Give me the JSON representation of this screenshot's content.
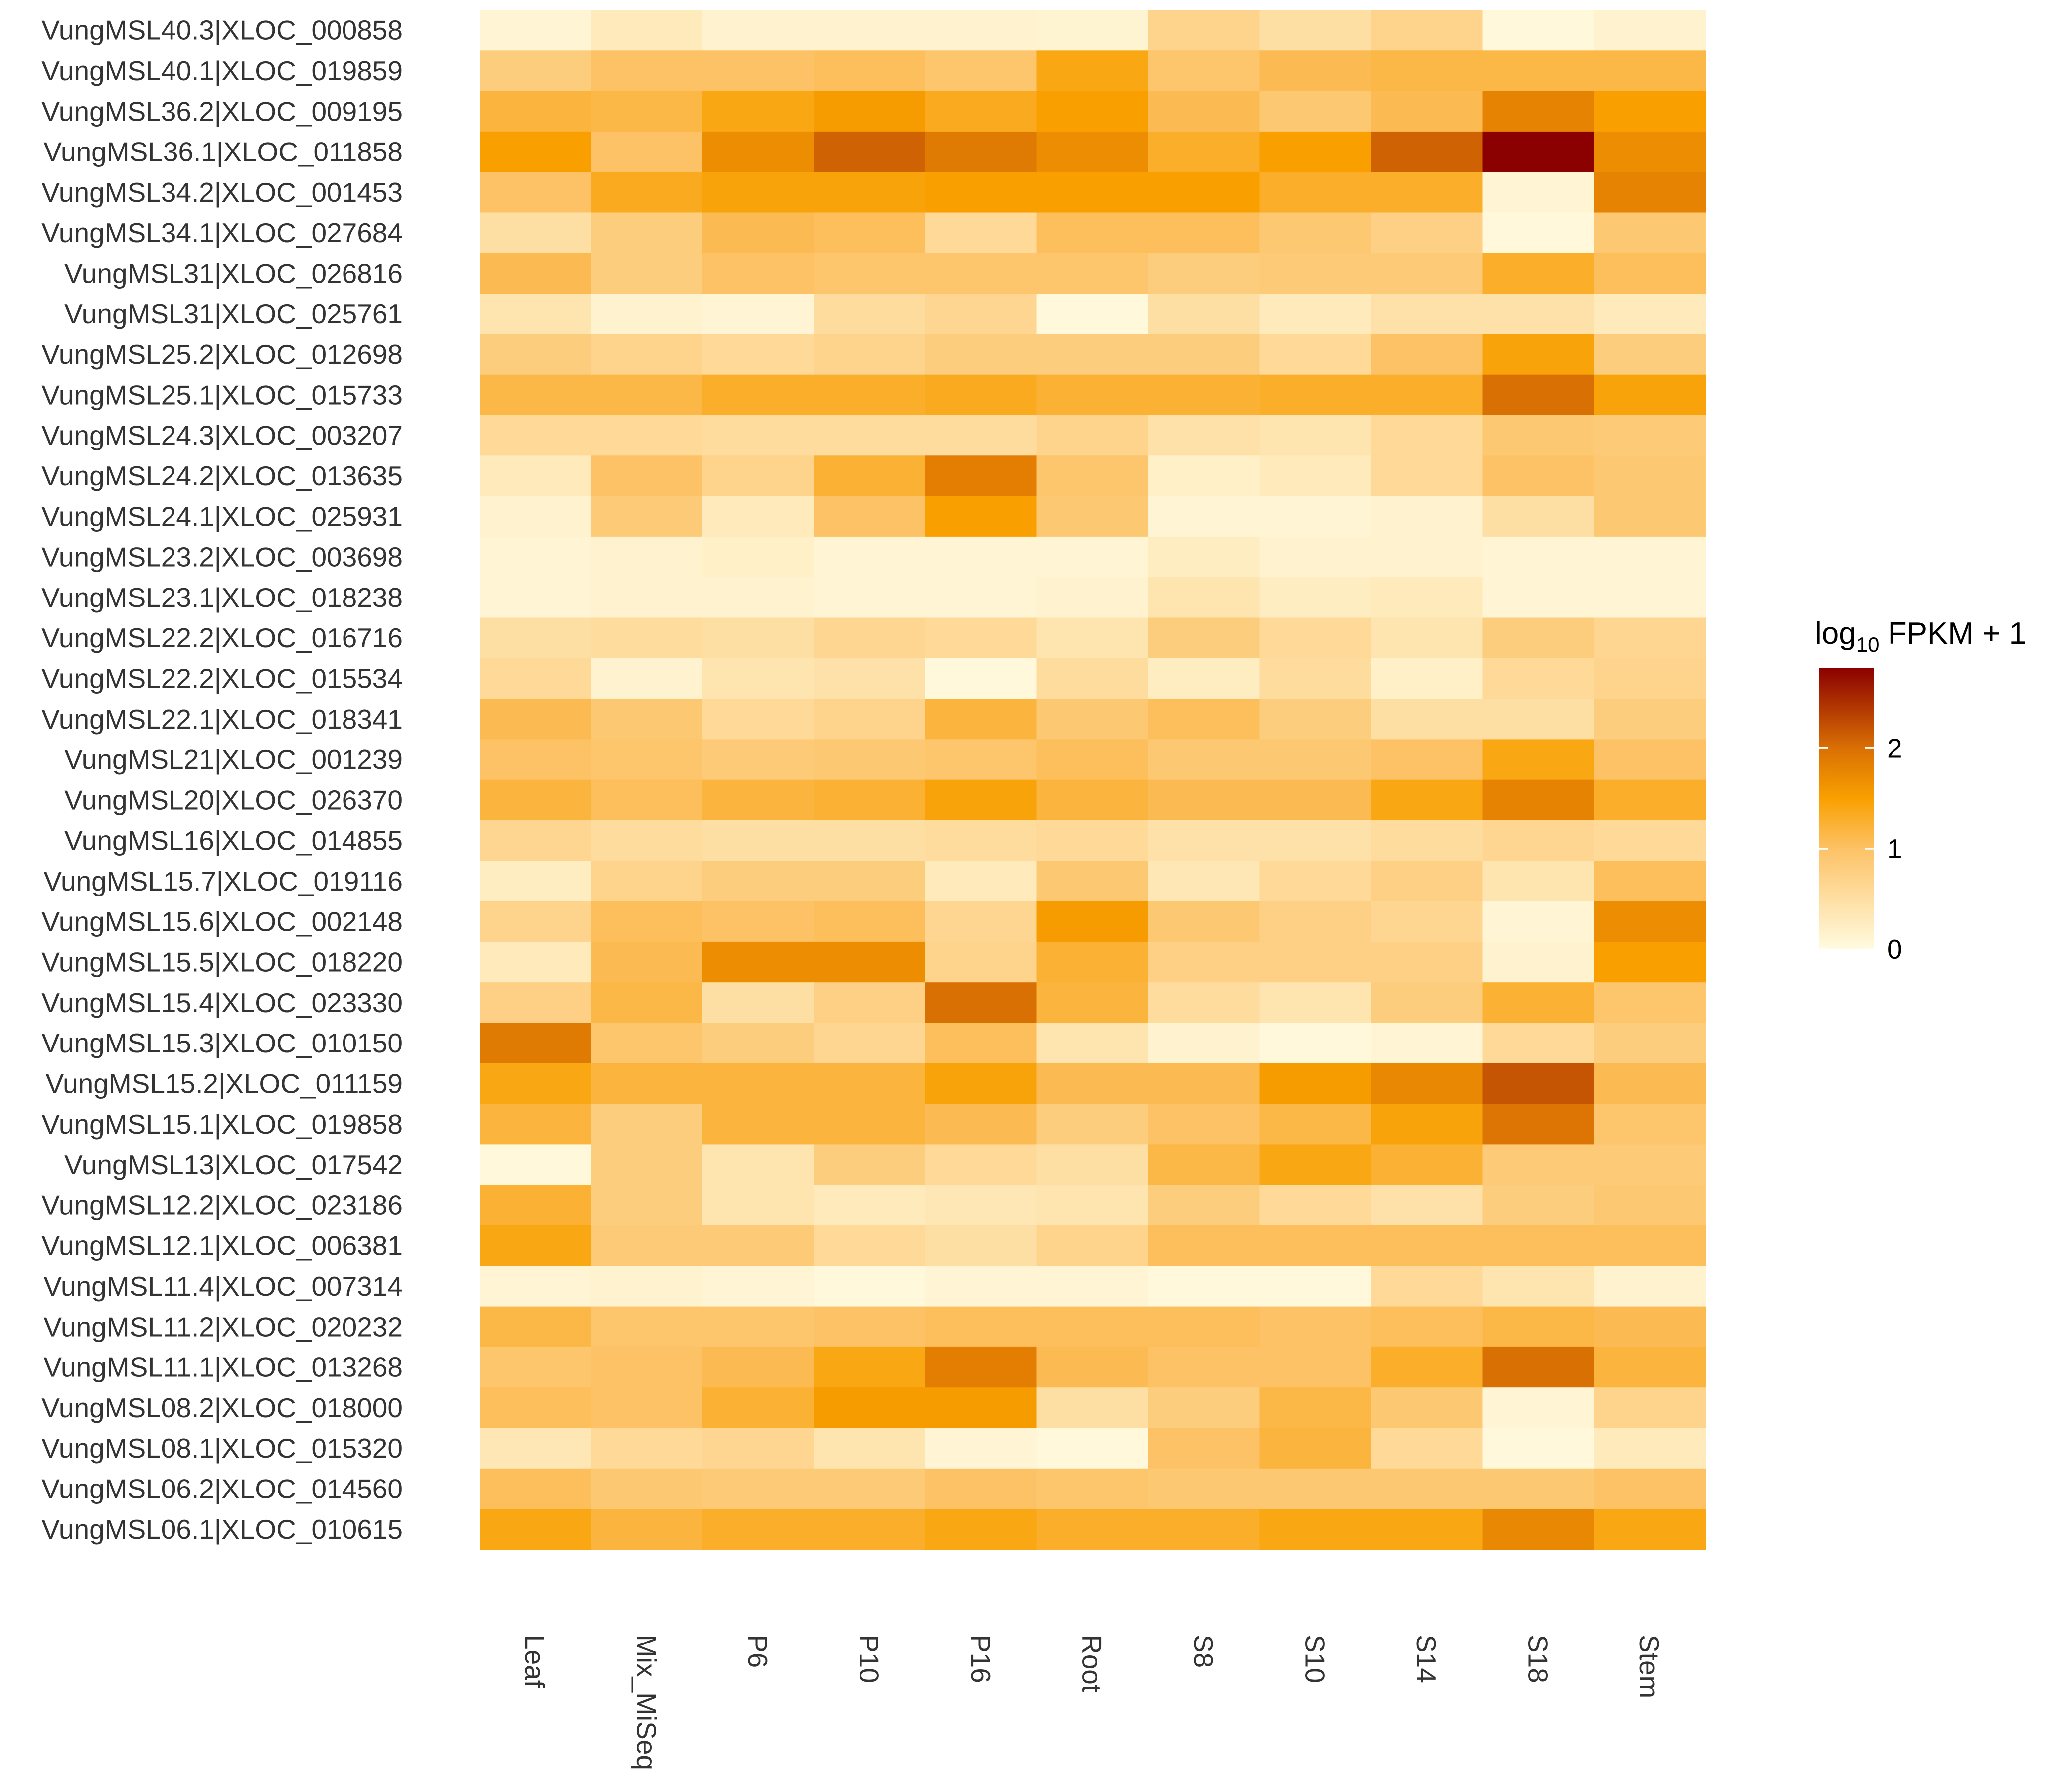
{
  "chart_data": {
    "type": "heatmap",
    "title": "",
    "xlabel": "",
    "ylabel": "",
    "columns": [
      "Leaf",
      "Mix_MiSeq",
      "P6",
      "P10",
      "P16",
      "Root",
      "S8",
      "S10",
      "S14",
      "S18",
      "Stem"
    ],
    "rows": [
      "VungMSL40.3|XLOC_000858",
      "VungMSL40.1|XLOC_019859",
      "VungMSL36.2|XLOC_009195",
      "VungMSL36.1|XLOC_011858",
      "VungMSL34.2|XLOC_001453",
      "VungMSL34.1|XLOC_027684",
      "VungMSL31|XLOC_026816",
      "VungMSL31|XLOC_025761",
      "VungMSL25.2|XLOC_012698",
      "VungMSL25.1|XLOC_015733",
      "VungMSL24.3|XLOC_003207",
      "VungMSL24.2|XLOC_013635",
      "VungMSL24.1|XLOC_025931",
      "VungMSL23.2|XLOC_003698",
      "VungMSL23.1|XLOC_018238",
      "VungMSL22.2|XLOC_016716",
      "VungMSL22.2|XLOC_015534",
      "VungMSL22.1|XLOC_018341",
      "VungMSL21|XLOC_001239",
      "VungMSL20|XLOC_026370",
      "VungMSL16|XLOC_014855",
      "VungMSL15.7|XLOC_019116",
      "VungMSL15.6|XLOC_002148",
      "VungMSL15.5|XLOC_018220",
      "VungMSL15.4|XLOC_023330",
      "VungMSL15.3|XLOC_010150",
      "VungMSL15.2|XLOC_011159",
      "VungMSL15.1|XLOC_019858",
      "VungMSL13|XLOC_017542",
      "VungMSL12.2|XLOC_023186",
      "VungMSL12.1|XLOC_006381",
      "VungMSL11.4|XLOC_007314",
      "VungMSL11.2|XLOC_020232",
      "VungMSL11.1|XLOC_013268",
      "VungMSL08.2|XLOC_018000",
      "VungMSL08.1|XLOC_015320",
      "VungMSL06.2|XLOC_014560",
      "VungMSL06.1|XLOC_010615"
    ],
    "values": [
      [
        0.1,
        0.3,
        0.15,
        0.15,
        0.15,
        0.12,
        0.7,
        0.5,
        0.7,
        0.05,
        0.15
      ],
      [
        0.8,
        1.0,
        1.0,
        1.05,
        0.95,
        1.4,
        0.95,
        1.1,
        1.15,
        1.15,
        1.15
      ],
      [
        1.2,
        1.15,
        1.4,
        1.55,
        1.35,
        1.5,
        1.1,
        0.9,
        1.1,
        1.8,
        1.5
      ],
      [
        1.5,
        1.0,
        1.7,
        2.1,
        1.9,
        1.7,
        1.3,
        1.5,
        2.1,
        2.8,
        1.7
      ],
      [
        1.0,
        1.35,
        1.45,
        1.45,
        1.5,
        1.5,
        1.5,
        1.3,
        1.3,
        0.1,
        1.8
      ],
      [
        0.5,
        0.8,
        1.1,
        1.05,
        0.6,
        1.05,
        1.05,
        0.9,
        0.75,
        0.05,
        0.9
      ],
      [
        1.1,
        0.8,
        1.0,
        0.95,
        0.95,
        0.95,
        0.8,
        0.85,
        0.85,
        1.3,
        1.05
      ],
      [
        0.4,
        0.15,
        0.1,
        0.55,
        0.65,
        0.05,
        0.5,
        0.3,
        0.45,
        0.45,
        0.3
      ],
      [
        0.8,
        0.7,
        0.6,
        0.7,
        0.8,
        0.8,
        0.8,
        0.6,
        1.0,
        1.45,
        0.8
      ],
      [
        1.15,
        1.15,
        1.3,
        1.3,
        1.35,
        1.25,
        1.25,
        1.3,
        1.3,
        2.0,
        1.45
      ],
      [
        0.6,
        0.6,
        0.55,
        0.55,
        0.55,
        0.7,
        0.45,
        0.4,
        0.6,
        0.9,
        0.85
      ],
      [
        0.3,
        1.0,
        0.7,
        1.25,
        1.85,
        0.95,
        0.2,
        0.3,
        0.6,
        1.0,
        0.9
      ],
      [
        0.15,
        0.85,
        0.3,
        1.0,
        1.5,
        0.9,
        0.1,
        0.1,
        0.15,
        0.5,
        0.9
      ],
      [
        0.1,
        0.15,
        0.2,
        0.1,
        0.1,
        0.1,
        0.25,
        0.15,
        0.15,
        0.1,
        0.1
      ],
      [
        0.1,
        0.15,
        0.15,
        0.1,
        0.1,
        0.15,
        0.4,
        0.25,
        0.3,
        0.1,
        0.1
      ],
      [
        0.5,
        0.55,
        0.5,
        0.65,
        0.6,
        0.4,
        0.8,
        0.6,
        0.4,
        0.8,
        0.65
      ],
      [
        0.6,
        0.15,
        0.4,
        0.45,
        0.05,
        0.55,
        0.25,
        0.55,
        0.2,
        0.6,
        0.7
      ],
      [
        1.1,
        0.9,
        0.6,
        0.7,
        1.2,
        0.9,
        1.05,
        0.8,
        0.5,
        0.5,
        0.8
      ],
      [
        1.0,
        0.95,
        0.85,
        0.9,
        0.95,
        1.05,
        0.9,
        0.9,
        1.0,
        1.4,
        1.0
      ],
      [
        1.2,
        1.05,
        1.2,
        1.25,
        1.45,
        1.2,
        1.1,
        1.1,
        1.4,
        1.8,
        1.3
      ],
      [
        0.65,
        0.55,
        0.5,
        0.5,
        0.55,
        0.6,
        0.45,
        0.45,
        0.55,
        0.65,
        0.6
      ],
      [
        0.25,
        0.7,
        0.8,
        0.8,
        0.3,
        0.9,
        0.35,
        0.6,
        0.75,
        0.4,
        1.05
      ],
      [
        0.7,
        1.05,
        1.0,
        1.05,
        0.65,
        1.55,
        0.9,
        0.75,
        0.65,
        0.1,
        1.7
      ],
      [
        0.3,
        1.1,
        1.7,
        1.7,
        0.7,
        1.25,
        0.75,
        0.75,
        0.75,
        0.15,
        1.5
      ],
      [
        0.75,
        1.15,
        0.5,
        0.75,
        2.0,
        1.2,
        0.55,
        0.4,
        0.8,
        1.25,
        0.95
      ],
      [
        1.9,
        0.95,
        0.8,
        0.65,
        1.05,
        0.4,
        0.15,
        0.05,
        0.1,
        0.6,
        0.8
      ],
      [
        1.4,
        1.2,
        1.2,
        1.2,
        1.45,
        1.1,
        1.1,
        1.55,
        1.75,
        2.2,
        1.1
      ],
      [
        1.2,
        0.8,
        1.2,
        1.2,
        1.1,
        0.8,
        1.0,
        1.15,
        1.45,
        1.95,
        0.95
      ],
      [
        0.05,
        0.8,
        0.4,
        0.8,
        0.6,
        0.5,
        1.15,
        1.4,
        1.25,
        0.85,
        0.85
      ],
      [
        1.25,
        0.8,
        0.4,
        0.3,
        0.35,
        0.4,
        0.8,
        0.6,
        0.45,
        0.8,
        0.9
      ],
      [
        1.4,
        0.85,
        0.85,
        0.6,
        0.5,
        0.7,
        1.05,
        1.05,
        1.05,
        1.05,
        1.05
      ],
      [
        0.1,
        0.15,
        0.1,
        0.05,
        0.1,
        0.1,
        0.05,
        0.05,
        0.6,
        0.4,
        0.15
      ],
      [
        1.15,
        0.95,
        0.95,
        1.0,
        1.05,
        1.05,
        1.05,
        1.0,
        1.05,
        1.15,
        1.1
      ],
      [
        0.95,
        1.0,
        1.1,
        1.4,
        1.85,
        1.1,
        1.0,
        1.0,
        1.3,
        2.0,
        1.2
      ],
      [
        1.05,
        1.0,
        1.25,
        1.55,
        1.55,
        0.5,
        0.8,
        1.15,
        0.9,
        0.1,
        0.7
      ],
      [
        0.35,
        0.6,
        0.65,
        0.4,
        0.1,
        0.05,
        1.0,
        1.2,
        0.6,
        0.05,
        0.3
      ],
      [
        1.05,
        0.9,
        0.85,
        0.85,
        1.0,
        0.95,
        0.9,
        0.9,
        0.9,
        0.9,
        1.0
      ],
      [
        1.4,
        1.2,
        1.3,
        1.3,
        1.4,
        1.3,
        1.3,
        1.4,
        1.4,
        1.75,
        1.4
      ]
    ],
    "color_scale": {
      "stops": [
        {
          "value": 0,
          "color": "#fffbe0"
        },
        {
          "value": 1,
          "color": "#fdc266"
        },
        {
          "value": 1.5,
          "color": "#f9a000"
        },
        {
          "value": 2,
          "color": "#d97004"
        },
        {
          "value": 2.8,
          "color": "#8b0000"
        }
      ],
      "range": [
        0,
        2.8
      ]
    },
    "legend": {
      "title_main": "log",
      "title_sub": "10",
      "title_rest": " FPKM + 1",
      "ticks": [
        "0",
        "1",
        "2"
      ],
      "tick_values": [
        0,
        1,
        2
      ],
      "placement": "right"
    }
  }
}
